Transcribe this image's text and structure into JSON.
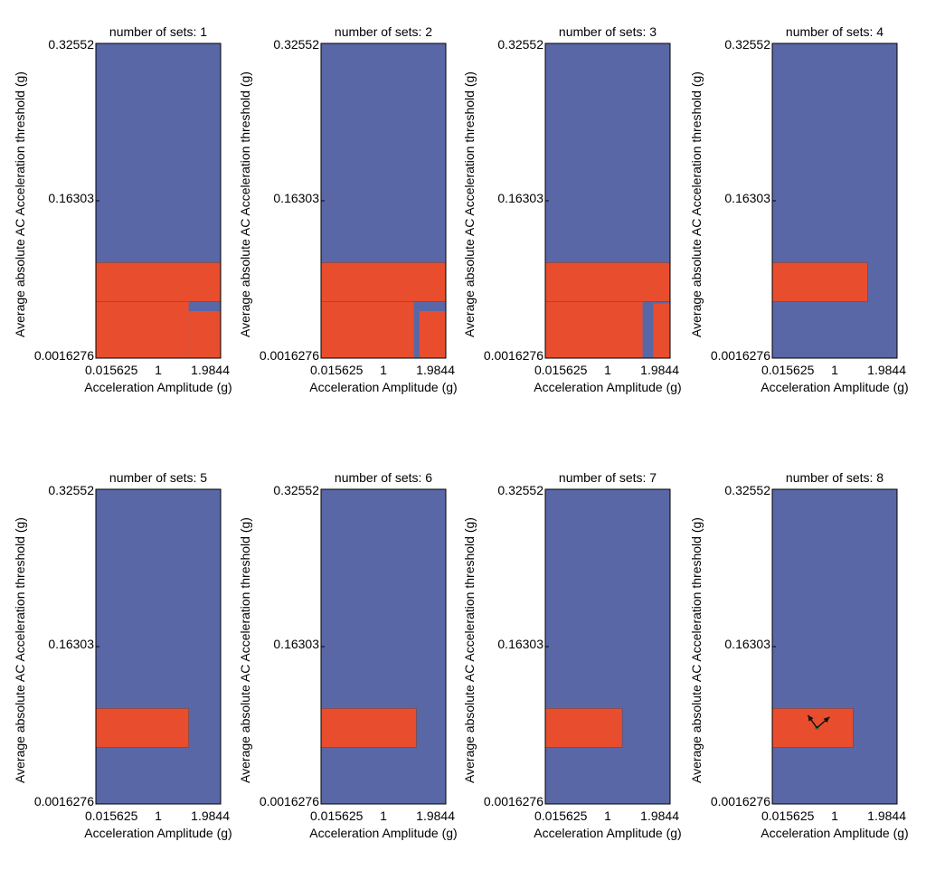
{
  "chart_data": {
    "type": "heatmap",
    "xlabel": "Acceleration Amplitude (g)",
    "ylabel": "Average absolute AC Acceleration threshold (g)",
    "xlim": [
      0.015625,
      1.9844
    ],
    "ylim": [
      0.0016276,
      0.32552
    ],
    "xticks": [
      "0.015625",
      "1",
      "1.9844"
    ],
    "yticks": [
      "0.32552",
      "0.16303",
      "0.0016276"
    ],
    "colors": {
      "background": "#5967a7",
      "region": "#e84e2e",
      "edge": "#3c3c3c",
      "marker": "#2c7a3c",
      "arrow": "#111111"
    },
    "panels": [
      {
        "title": "number of sets: 1",
        "band": [
          0.06,
          0.1,
          0.0157,
          1.98
        ],
        "tail": [
          [
            0.0016,
            0.06,
            0.0157,
            1.48
          ],
          [
            0.0016,
            0.05,
            1.48,
            1.98
          ]
        ]
      },
      {
        "title": "number of sets: 2",
        "band": [
          0.06,
          0.1,
          0.0157,
          1.98
        ],
        "tail": [
          [
            0.0016,
            0.06,
            0.0157,
            1.48
          ],
          [
            0.0016,
            0.05,
            1.57,
            1.98
          ]
        ]
      },
      {
        "title": "number of sets: 3",
        "band": [
          0.06,
          0.1,
          0.0157,
          1.98
        ],
        "tail": [
          [
            0.0016,
            0.06,
            0.0157,
            1.55
          ],
          [
            0.0016,
            0.058,
            1.72,
            1.98
          ]
        ]
      },
      {
        "title": "number of sets: 4",
        "band": [
          0.06,
          0.1,
          0.0157,
          1.52
        ],
        "tail": []
      },
      {
        "title": "number of sets: 5",
        "band": [
          0.06,
          0.1,
          0.0157,
          1.48
        ],
        "tail": []
      },
      {
        "title": "number of sets: 6",
        "band": [
          0.06,
          0.1,
          0.0157,
          1.52
        ],
        "tail": []
      },
      {
        "title": "number of sets: 7",
        "band": [
          0.06,
          0.1,
          0.0157,
          1.23
        ],
        "tail": []
      },
      {
        "title": "number of sets: 8",
        "band": [
          0.06,
          0.1,
          0.0157,
          1.29
        ],
        "tail": [],
        "marker": [
          0.72,
          0.08
        ]
      }
    ]
  }
}
